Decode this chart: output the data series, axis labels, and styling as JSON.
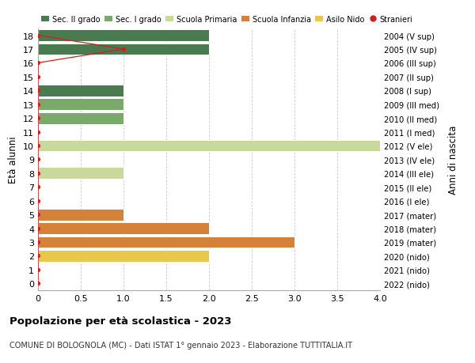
{
  "ages": [
    0,
    1,
    2,
    3,
    4,
    5,
    6,
    7,
    8,
    9,
    10,
    11,
    12,
    13,
    14,
    15,
    16,
    17,
    18
  ],
  "right_labels": [
    "2022 (nido)",
    "2021 (nido)",
    "2020 (nido)",
    "2019 (mater)",
    "2018 (mater)",
    "2017 (mater)",
    "2016 (I ele)",
    "2015 (II ele)",
    "2014 (III ele)",
    "2013 (IV ele)",
    "2012 (V ele)",
    "2011 (I med)",
    "2010 (II med)",
    "2009 (III med)",
    "2008 (I sup)",
    "2007 (II sup)",
    "2006 (III sup)",
    "2005 (IV sup)",
    "2004 (V sup)"
  ],
  "bars": [
    {
      "age": 0,
      "value": 0,
      "color": "#e8c84a"
    },
    {
      "age": 1,
      "value": 0,
      "color": "#e8c84a"
    },
    {
      "age": 2,
      "value": 2,
      "color": "#e8c84a"
    },
    {
      "age": 3,
      "value": 3,
      "color": "#d4813a"
    },
    {
      "age": 4,
      "value": 2,
      "color": "#d4813a"
    },
    {
      "age": 5,
      "value": 1,
      "color": "#d4813a"
    },
    {
      "age": 6,
      "value": 0,
      "color": "#c8d99a"
    },
    {
      "age": 7,
      "value": 0,
      "color": "#c8d99a"
    },
    {
      "age": 8,
      "value": 1,
      "color": "#c8d99a"
    },
    {
      "age": 9,
      "value": 0,
      "color": "#c8d99a"
    },
    {
      "age": 10,
      "value": 4,
      "color": "#c8d99a"
    },
    {
      "age": 11,
      "value": 0,
      "color": "#7aaa6a"
    },
    {
      "age": 12,
      "value": 1,
      "color": "#7aaa6a"
    },
    {
      "age": 13,
      "value": 1,
      "color": "#7aaa6a"
    },
    {
      "age": 14,
      "value": 1,
      "color": "#4a7a50"
    },
    {
      "age": 15,
      "value": 0,
      "color": "#4a7a50"
    },
    {
      "age": 16,
      "value": 0,
      "color": "#4a7a50"
    },
    {
      "age": 17,
      "value": 2,
      "color": "#4a7a50"
    },
    {
      "age": 18,
      "value": 2,
      "color": "#4a7a50"
    }
  ],
  "stranieri_values_by_age": [
    0,
    0,
    0,
    0,
    0,
    0,
    0,
    0,
    0,
    0,
    0,
    0,
    0,
    0,
    0,
    0,
    0,
    1,
    0
  ],
  "stranieri_color": "#cc2222",
  "legend_items": [
    {
      "label": "Sec. II grado",
      "color": "#4a7a50",
      "type": "patch"
    },
    {
      "label": "Sec. I grado",
      "color": "#7aaa6a",
      "type": "patch"
    },
    {
      "label": "Scuola Primaria",
      "color": "#c8d99a",
      "type": "patch"
    },
    {
      "label": "Scuola Infanzia",
      "color": "#d4813a",
      "type": "patch"
    },
    {
      "label": "Asilo Nido",
      "color": "#e8c84a",
      "type": "patch"
    },
    {
      "label": "Stranieri",
      "color": "#cc2222",
      "type": "dot"
    }
  ],
  "ylabel": "Età alunni",
  "right_ylabel": "Anni di nascita",
  "xlim": [
    0,
    4.0
  ],
  "ylim": [
    -0.5,
    18.5
  ],
  "title": "Popolazione per età scolastica - 2023",
  "subtitle": "COMUNE DI BOLOGNOLA (MC) - Dati ISTAT 1° gennaio 2023 - Elaborazione TUTTITALIA.IT",
  "bar_height": 0.85,
  "bg_color": "#ffffff",
  "grid_color": "#cccccc"
}
